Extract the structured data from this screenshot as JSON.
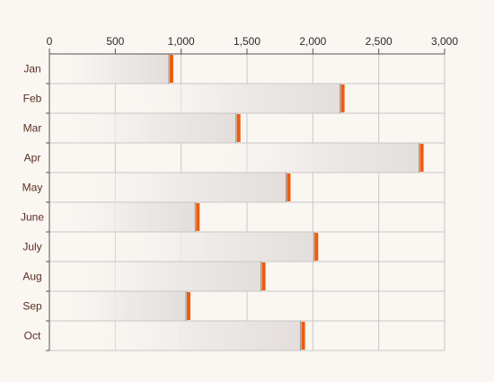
{
  "chart_data": {
    "type": "bar",
    "orientation": "horizontal",
    "categories": [
      "Jan",
      "Feb",
      "Mar",
      "Apr",
      "May",
      "June",
      "July",
      "Aug",
      "Sep",
      "Oct"
    ],
    "values": [
      920,
      2220,
      1430,
      2820,
      1810,
      1120,
      2020,
      1620,
      1050,
      1920
    ],
    "x_ticks": [
      "0",
      "500",
      "1,000",
      "1,500",
      "2,000",
      "2,500",
      "3,000"
    ],
    "xlim": [
      0,
      3000
    ],
    "x_axis_position": "top",
    "grid": true,
    "legend": "none",
    "title": "",
    "xlabel": "",
    "ylabel": "",
    "colors": {
      "background": "#faf6f2",
      "grid": "#c9c6c4",
      "bar_fill": "#e9e4e1",
      "marker": "#ef5b0c",
      "axis": "#555555",
      "x_tick_text": "#2b2b2b",
      "y_tick_text": "#5a2e22"
    }
  }
}
